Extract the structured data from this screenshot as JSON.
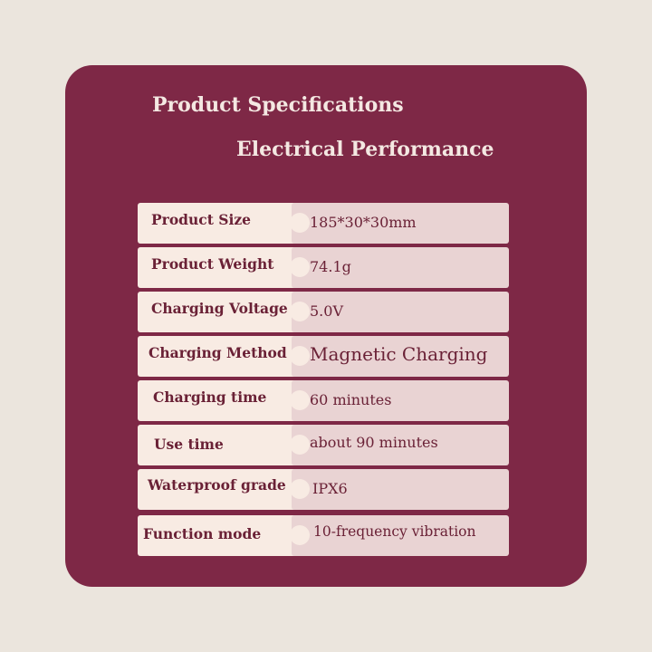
{
  "header": {
    "title": "Product Specifications",
    "subtitle": "Electrical Performance"
  },
  "specs": [
    {
      "label": "Product Size",
      "value": "185*30*30mm"
    },
    {
      "label": "Product Weight",
      "value": "74.1g"
    },
    {
      "label": "Charging Voltage",
      "value": "5.0V"
    },
    {
      "label": "Charging Method",
      "value": "Magnetic Charging"
    },
    {
      "label": "Charging time",
      "value": "60 minutes"
    },
    {
      "label": "Use time",
      "value": "about 90 minutes"
    },
    {
      "label": "Waterproof  grade",
      "value": "IPX6"
    },
    {
      "label": "Function mode",
      "value": "10-frequency vibration"
    }
  ],
  "colors": {
    "page_background": "#ebe5dd",
    "card_background": "#7e2846",
    "label_cell": "#f8ebe3",
    "value_cell": "#e9d3d3",
    "text": "#6a2136",
    "title_text": "#f4e8e2"
  }
}
